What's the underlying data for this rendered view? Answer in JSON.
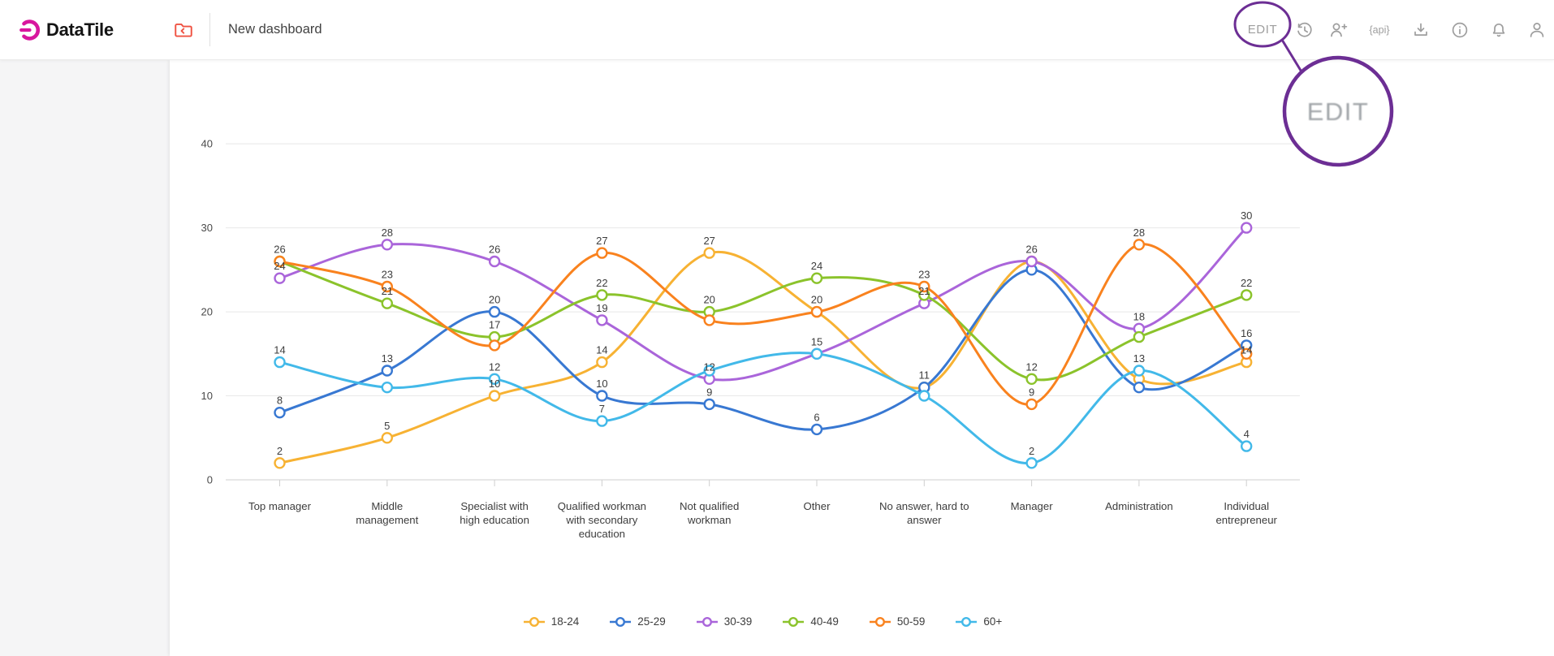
{
  "header": {
    "brand": "DataTile",
    "dashboard_title": "New dashboard",
    "edit_label": "EDIT",
    "api_icon_text": "{api}"
  },
  "annotation": {
    "magnified_label": "EDIT"
  },
  "colors": {
    "annotation_purple": "#6C2E94",
    "brand_magenta": "#D8179E",
    "folder_red": "#EF5343",
    "icon_gray": "#9E9E9E",
    "grid_line": "#E8E8E8",
    "axis_line": "#CFCFCF",
    "label_text": "#3D3D3D",
    "axis_text": "#4A4A4A"
  },
  "chart_data": {
    "type": "line",
    "title": "",
    "xlabel": "",
    "ylabel": "",
    "ylim": [
      0,
      40
    ],
    "yticks": [
      0,
      10,
      20,
      30,
      40
    ],
    "grid": true,
    "legend_position": "bottom",
    "marker": "open-circle",
    "categories": [
      "Top manager",
      "Middle management",
      "Specialist with high education",
      "Qualified workman with secondary education",
      "Not qualified workman",
      "Other",
      "No answer, hard to answer",
      "Manager",
      "Administration",
      "Individual entrepreneur"
    ],
    "category_lines": [
      [
        "Top manager"
      ],
      [
        "Middle",
        "management"
      ],
      [
        "Specialist with",
        "high education"
      ],
      [
        "Qualified workman",
        "with secondary",
        "education"
      ],
      [
        "Not qualified",
        "workman"
      ],
      [
        "Other"
      ],
      [
        "No answer, hard to",
        "answer"
      ],
      [
        "Manager"
      ],
      [
        "Administration"
      ],
      [
        "Individual",
        "entrepreneur"
      ]
    ],
    "series": [
      {
        "name": "18-24",
        "color": "#F7B233",
        "values": [
          2,
          5,
          10,
          14,
          27,
          20,
          11,
          26,
          12,
          14
        ],
        "labels_visible": [
          true,
          true,
          true,
          true,
          true,
          false,
          false,
          false,
          false,
          true
        ]
      },
      {
        "name": "25-29",
        "color": "#3878D2",
        "values": [
          8,
          13,
          20,
          10,
          9,
          6,
          11,
          25,
          11,
          16
        ],
        "labels_visible": [
          true,
          true,
          true,
          true,
          true,
          true,
          true,
          false,
          false,
          true
        ]
      },
      {
        "name": "30-39",
        "color": "#AA65DA",
        "values": [
          24,
          28,
          26,
          19,
          12,
          15,
          21,
          26,
          18,
          30
        ],
        "labels_visible": [
          true,
          true,
          true,
          true,
          true,
          true,
          true,
          true,
          true,
          true
        ]
      },
      {
        "name": "40-49",
        "color": "#8BC32B",
        "values": [
          26,
          21,
          17,
          22,
          20,
          24,
          22,
          12,
          17,
          22
        ],
        "labels_visible": [
          false,
          true,
          true,
          true,
          true,
          true,
          false,
          true,
          false,
          true
        ]
      },
      {
        "name": "50-59",
        "color": "#F9821E",
        "values": [
          26,
          23,
          16,
          27,
          19,
          20,
          23,
          9,
          28,
          15
        ],
        "labels_visible": [
          true,
          true,
          false,
          true,
          false,
          true,
          true,
          true,
          true,
          false
        ]
      },
      {
        "name": "60+",
        "color": "#42B9E9",
        "values": [
          14,
          11,
          12,
          7,
          13,
          15,
          10,
          2,
          13,
          4
        ],
        "labels_visible": [
          true,
          false,
          true,
          true,
          false,
          false,
          false,
          true,
          true,
          true
        ]
      }
    ]
  }
}
